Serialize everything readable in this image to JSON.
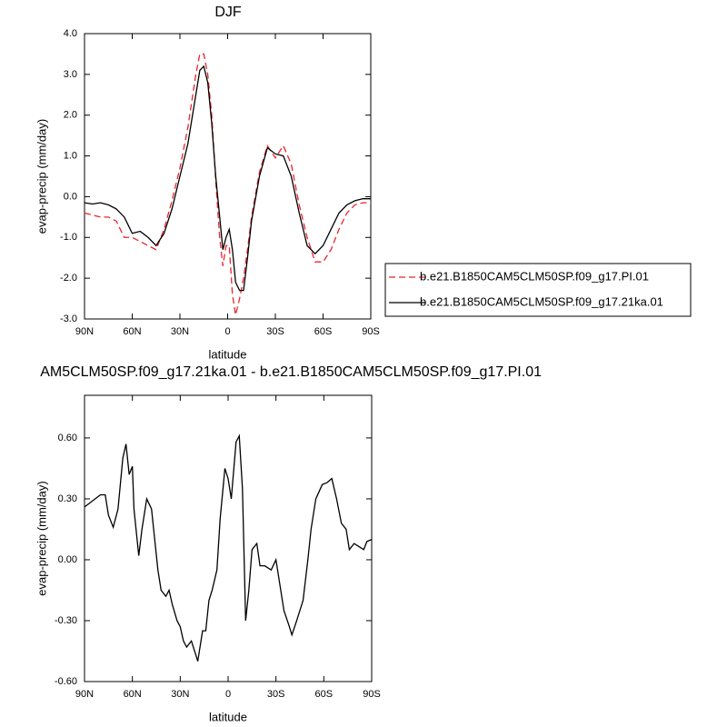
{
  "chart_data": [
    {
      "type": "line",
      "title": "DJF",
      "x_label": "latitude",
      "y_label": "evap-precip (mm/day)",
      "xlim": [
        90,
        -90
      ],
      "xticks": [
        {
          "value": 90,
          "label": "90N"
        },
        {
          "value": 60,
          "label": "60N"
        },
        {
          "value": 30,
          "label": "30N"
        },
        0,
        {
          "value": -30,
          "label": "30S"
        },
        {
          "value": -60,
          "label": "60S"
        },
        {
          "value": -90,
          "label": "90S"
        }
      ],
      "ylim": [
        -3,
        4
      ],
      "yticks": [
        {
          "value": -3,
          "label": "-3.0"
        },
        {
          "value": -2,
          "label": "-2.0"
        },
        {
          "value": -1,
          "label": "-1.0"
        },
        {
          "value": 0,
          "label": "0.0"
        },
        {
          "value": 1,
          "label": "1.0"
        },
        {
          "value": 2,
          "label": "2.0"
        },
        {
          "value": 3,
          "label": "3.0"
        },
        {
          "value": 4,
          "label": "4.0"
        }
      ],
      "x": [
        90,
        85,
        80,
        75,
        70,
        65,
        60,
        55,
        50,
        45,
        40,
        35,
        30,
        25,
        20,
        17.5,
        15,
        12.5,
        10,
        7.5,
        5,
        3,
        1,
        -1,
        -3,
        -5,
        -7.5,
        -10,
        -12.5,
        -15,
        -20,
        -25,
        -30,
        -35,
        -40,
        -45,
        -50,
        -55,
        -60,
        -65,
        -70,
        -75,
        -80,
        -85,
        -90
      ],
      "legend": "outside-right",
      "series": [
        {
          "name": "b.e21.B1850CAM5CLM50SP.f09_g17.PI.01",
          "color": "#e8252b",
          "dashed": true,
          "values": [
            -0.4,
            -0.45,
            -0.5,
            -0.5,
            -0.6,
            -1.0,
            -1.0,
            -1.1,
            -1.2,
            -1.3,
            -0.8,
            -0.1,
            0.7,
            1.7,
            3.0,
            3.5,
            3.5,
            3.0,
            2.0,
            0.4,
            -1.0,
            -1.7,
            -1.2,
            -1.2,
            -2.4,
            -2.9,
            -2.5,
            -2.0,
            -1.3,
            -0.5,
            0.6,
            1.25,
            0.95,
            1.25,
            0.8,
            -0.2,
            -1.0,
            -1.6,
            -1.6,
            -1.3,
            -0.8,
            -0.4,
            -0.2,
            -0.15,
            -0.15
          ]
        },
        {
          "name": "b.e21.B1850CAM5CLM50SP.f09_g17.21ka.01",
          "color": "#000000",
          "dashed": false,
          "values": [
            -0.15,
            -0.18,
            -0.15,
            -0.2,
            -0.3,
            -0.5,
            -0.9,
            -0.85,
            -1.0,
            -1.2,
            -0.9,
            -0.3,
            0.5,
            1.3,
            2.5,
            3.1,
            3.2,
            2.8,
            1.8,
            0.5,
            -0.5,
            -1.3,
            -1.0,
            -0.8,
            -1.3,
            -2.1,
            -2.3,
            -2.3,
            -1.5,
            -0.6,
            0.5,
            1.2,
            1.05,
            1.0,
            0.5,
            -0.4,
            -1.2,
            -1.4,
            -1.2,
            -0.8,
            -0.4,
            -0.2,
            -0.1,
            -0.05,
            -0.05
          ]
        }
      ]
    },
    {
      "type": "line",
      "title": "AM5CLM50SP.f09_g17.21ka.01 - b.e21.B1850CAM5CLM50SP.f09_g17.PI.01",
      "x_label": "latitude",
      "y_label": "evap-precip (mm/day)",
      "xlim": [
        90,
        -90
      ],
      "xticks": [
        {
          "value": 90,
          "label": "90N"
        },
        {
          "value": 60,
          "label": "60N"
        },
        {
          "value": 30,
          "label": "30N"
        },
        0,
        {
          "value": -30,
          "label": "30S"
        },
        {
          "value": -60,
          "label": "60S"
        },
        {
          "value": -90,
          "label": "90S"
        }
      ],
      "ylim": [
        -0.6,
        0.81
      ],
      "yticks": [
        {
          "value": -0.6,
          "label": "-0.60"
        },
        {
          "value": -0.3,
          "label": "-0.30"
        },
        {
          "value": 0,
          "label": "0.00"
        },
        {
          "value": 0.3,
          "label": "0.30"
        },
        {
          "value": 0.6,
          "label": "0.60"
        }
      ],
      "x": [
        90,
        80,
        77,
        75,
        72,
        69,
        66,
        64,
        62,
        60,
        59,
        56,
        54,
        51,
        48,
        46,
        44,
        42,
        39,
        37,
        35,
        32,
        30,
        28,
        26,
        23,
        21,
        19,
        16,
        14,
        12,
        10,
        7,
        5,
        2,
        0,
        -2,
        -5,
        -7,
        -9,
        -11,
        -13,
        -15,
        -18,
        -20,
        -23,
        -27,
        -30,
        -32,
        -35,
        -38,
        -40,
        -43,
        -47,
        -50,
        -52,
        -55,
        -59,
        -62,
        -65,
        -68,
        -71,
        -74,
        -76,
        -79,
        -83,
        -85,
        -87,
        -90
      ],
      "color": "#000000",
      "values": [
        0.26,
        0.32,
        0.32,
        0.22,
        0.16,
        0.25,
        0.5,
        0.57,
        0.42,
        0.46,
        0.25,
        0.02,
        0.15,
        0.3,
        0.25,
        0.1,
        -0.05,
        -0.15,
        -0.18,
        -0.15,
        -0.22,
        -0.3,
        -0.33,
        -0.4,
        -0.43,
        -0.4,
        -0.45,
        -0.5,
        -0.35,
        -0.35,
        -0.2,
        -0.15,
        -0.05,
        0.2,
        0.45,
        0.4,
        0.3,
        0.58,
        0.61,
        0.35,
        -0.3,
        -0.15,
        0.05,
        0.08,
        -0.03,
        -0.03,
        -0.05,
        0.0,
        -0.1,
        -0.25,
        -0.32,
        -0.37,
        -0.3,
        -0.2,
        0.0,
        0.15,
        0.3,
        0.37,
        0.38,
        0.4,
        0.3,
        0.18,
        0.15,
        0.05,
        0.08,
        0.06,
        0.05,
        0.09,
        0.1
      ]
    }
  ]
}
